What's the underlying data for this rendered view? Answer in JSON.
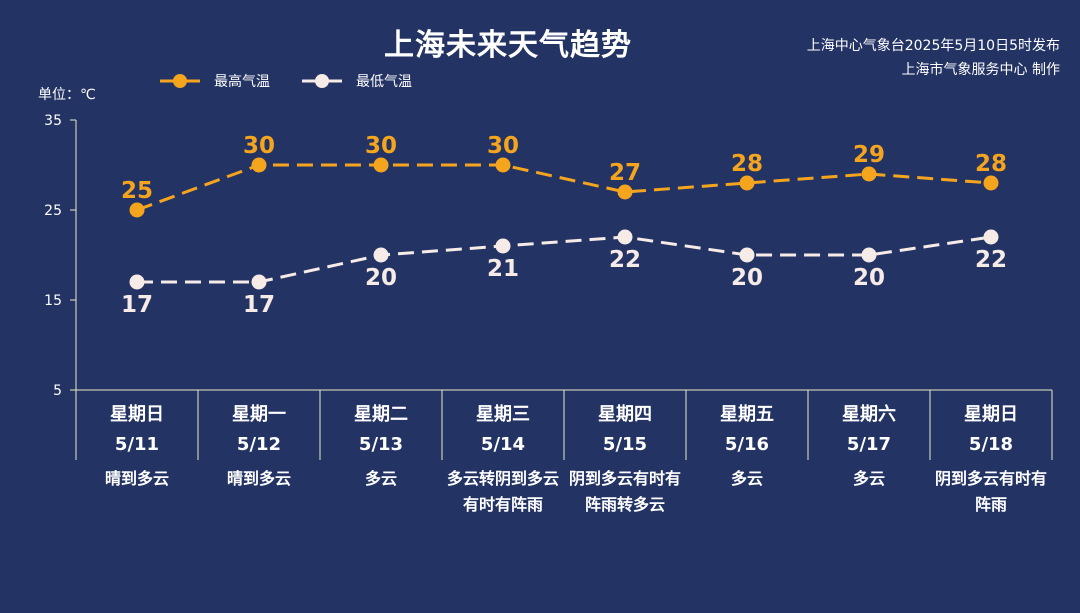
{
  "title": "上海未来天气趋势",
  "source_line1": "上海中心气象台2025年5月10日5时发布",
  "source_line2": "上海市气象服务中心 制作",
  "unit_label": "单位：℃",
  "colors": {
    "background": "#233364",
    "high": "#f5a51d",
    "low": "#f6ebe6",
    "axis": "#e8e8c8"
  },
  "days": [
    {
      "dow": "星期日",
      "date": "5/11",
      "weather": "晴到多云"
    },
    {
      "dow": "星期一",
      "date": "5/12",
      "weather": "晴到多云"
    },
    {
      "dow": "星期二",
      "date": "5/13",
      "weather": "多云"
    },
    {
      "dow": "星期三",
      "date": "5/14",
      "weather": "多云转阴到多云有时有阵雨"
    },
    {
      "dow": "星期四",
      "date": "5/15",
      "weather": "阴到多云有时有阵雨转多云"
    },
    {
      "dow": "星期五",
      "date": "5/16",
      "weather": "多云"
    },
    {
      "dow": "星期六",
      "date": "5/17",
      "weather": "多云"
    },
    {
      "dow": "星期日",
      "date": "5/18",
      "weather": "阴到多云有时有阵雨"
    }
  ],
  "chart_data": {
    "type": "line",
    "title": "上海未来天气趋势",
    "ylabel": "单位：℃",
    "categories": [
      "5/11",
      "5/12",
      "5/13",
      "5/14",
      "5/15",
      "5/16",
      "5/17",
      "5/18"
    ],
    "ylim": [
      5,
      35
    ],
    "yticks": [
      5,
      15,
      25,
      35
    ],
    "legend_position": "top-left",
    "grid": false,
    "series": [
      {
        "name": "最高气温",
        "values": [
          25,
          30,
          30,
          30,
          27,
          28,
          29,
          28
        ],
        "color": "#f5a51d",
        "label_position": "above"
      },
      {
        "name": "最低气温",
        "values": [
          17,
          17,
          20,
          21,
          22,
          20,
          20,
          22
        ],
        "color": "#f6ebe6",
        "label_position": "below"
      }
    ]
  }
}
